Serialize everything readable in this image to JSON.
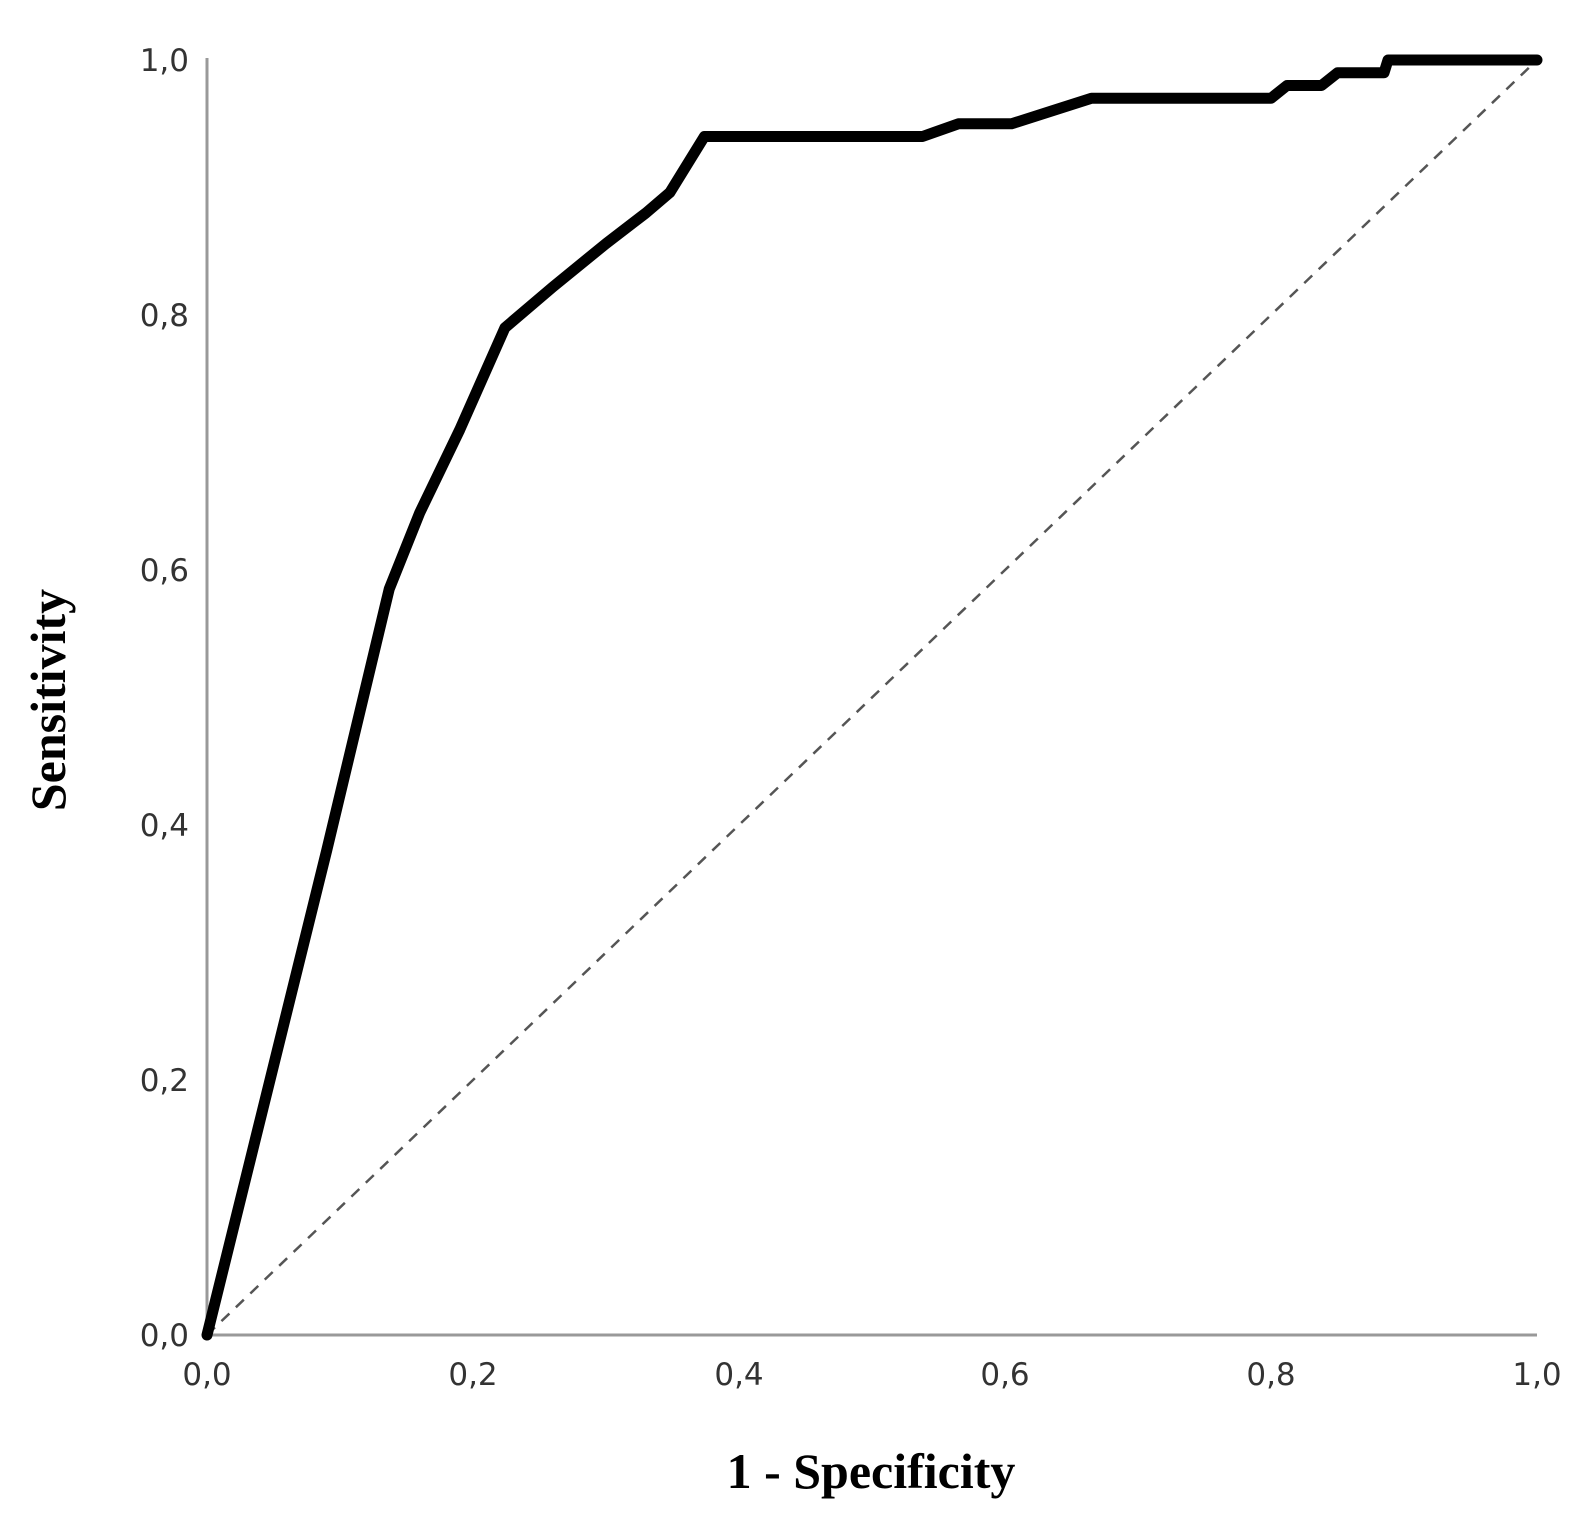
{
  "chart_data": {
    "type": "line",
    "title": "",
    "xlabel": "1 - Specificity",
    "ylabel": "Sensitivity",
    "xlim": [
      0,
      1
    ],
    "ylim": [
      0,
      1
    ],
    "x_ticks": [
      "0,0",
      "0,2",
      "0,4",
      "0,6",
      "0,8",
      "1,0"
    ],
    "y_ticks": [
      "0,0",
      "0,2",
      "0,4",
      "0,6",
      "0,8",
      "1,0"
    ],
    "grid": false,
    "series": [
      {
        "style": "solid-thick",
        "color": "#000000",
        "x": [
          0.0,
          0.09,
          0.137,
          0.16,
          0.19,
          0.224,
          0.26,
          0.3,
          0.33,
          0.348,
          0.374,
          0.4,
          0.45,
          0.5,
          0.538,
          0.565,
          0.585,
          0.605,
          0.635,
          0.665,
          0.7,
          0.75,
          0.8,
          0.812,
          0.838,
          0.85,
          0.885,
          0.888,
          0.92,
          1.0
        ],
        "y": [
          0.0,
          0.38,
          0.585,
          0.645,
          0.71,
          0.79,
          0.822,
          0.856,
          0.88,
          0.896,
          0.94,
          0.94,
          0.94,
          0.94,
          0.94,
          0.95,
          0.95,
          0.95,
          0.96,
          0.97,
          0.97,
          0.97,
          0.97,
          0.98,
          0.98,
          0.99,
          0.99,
          1.0,
          1.0,
          1.0
        ]
      },
      {
        "style": "dashed-reference",
        "color": "#555555",
        "x": [
          0.0,
          1.0
        ],
        "y": [
          0.0,
          1.0
        ]
      }
    ]
  }
}
